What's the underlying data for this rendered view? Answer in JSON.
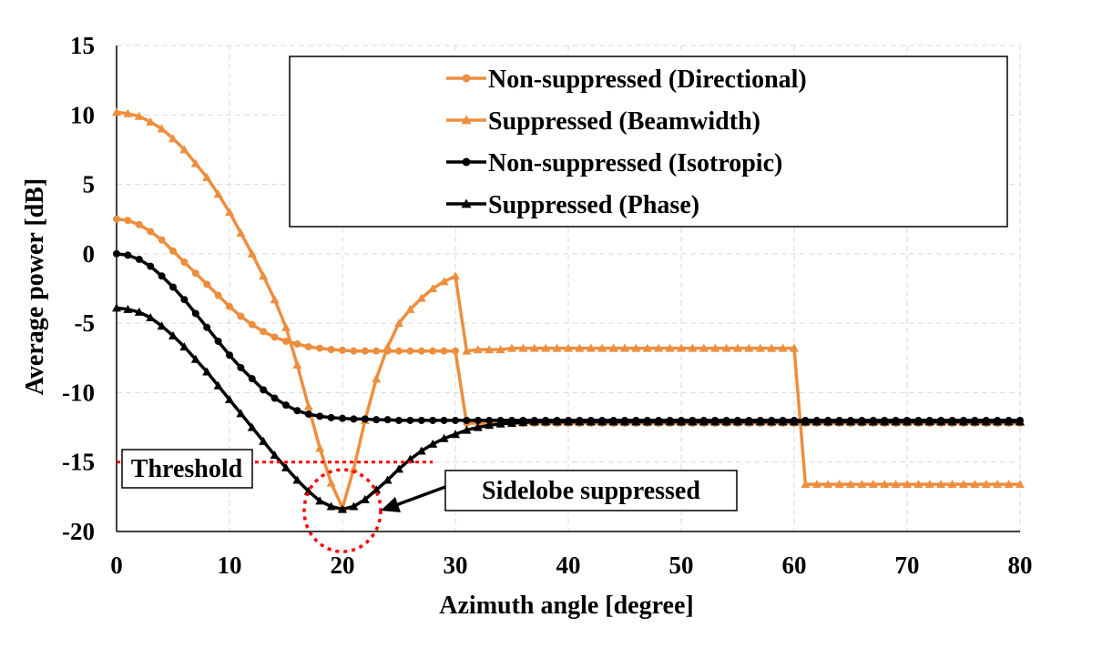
{
  "chart_data": {
    "type": "line",
    "title": "",
    "xlabel": "Azimuth angle [degree]",
    "ylabel": "Average power [dB]",
    "xlim": [
      0,
      80
    ],
    "ylim": [
      -20,
      15
    ],
    "xticks": [
      0,
      10,
      20,
      30,
      40,
      50,
      60,
      70,
      80
    ],
    "yticks": [
      15,
      10,
      5,
      0,
      -5,
      -10,
      -15,
      -20
    ],
    "grid": true,
    "legend_position": "top-right",
    "series": [
      {
        "name": "Non-suppressed (Directional)",
        "color": "#ED8E3F",
        "marker": "circle",
        "x": [
          0,
          1,
          2,
          3,
          4,
          5,
          6,
          7,
          8,
          9,
          10,
          11,
          12,
          13,
          14,
          15,
          16,
          17,
          18,
          19,
          20,
          21,
          22,
          23,
          24,
          25,
          26,
          27,
          28,
          29,
          30,
          31,
          32,
          33,
          34,
          35,
          36,
          37,
          38,
          39,
          40,
          41,
          42,
          43,
          44,
          45,
          46,
          47,
          48,
          49,
          50,
          51,
          52,
          53,
          54,
          55,
          56,
          57,
          58,
          59,
          60,
          61,
          62,
          63,
          64,
          65,
          66,
          67,
          68,
          69,
          70,
          71,
          72,
          73,
          74,
          75,
          76,
          77,
          78,
          79,
          80
        ],
        "y": [
          2.5,
          2.4,
          2.1,
          1.6,
          1.0,
          0.2,
          -0.6,
          -1.4,
          -2.2,
          -3.0,
          -3.8,
          -4.5,
          -5.1,
          -5.6,
          -6.0,
          -6.3,
          -6.5,
          -6.7,
          -6.8,
          -6.9,
          -6.95,
          -7.0,
          -7.0,
          -7.0,
          -7.0,
          -7.0,
          -7.0,
          -7.0,
          -7.0,
          -7.0,
          -7.0,
          -12.2,
          -12.2,
          -12.2,
          -12.2,
          -12.2,
          -12.2,
          -12.2,
          -12.2,
          -12.2,
          -12.2,
          -12.2,
          -12.2,
          -12.2,
          -12.2,
          -12.2,
          -12.2,
          -12.2,
          -12.2,
          -12.2,
          -12.2,
          -12.2,
          -12.2,
          -12.2,
          -12.2,
          -12.2,
          -12.2,
          -12.2,
          -12.2,
          -12.2,
          -12.2,
          -12.2,
          -12.2,
          -12.2,
          -12.2,
          -12.2,
          -12.2,
          -12.2,
          -12.2,
          -12.2,
          -12.2,
          -12.2,
          -12.2,
          -12.2,
          -12.2,
          -12.2,
          -12.2,
          -12.2,
          -12.2,
          -12.2,
          -12.2
        ]
      },
      {
        "name": "Suppressed (Beamwidth)",
        "color": "#ED8E3F",
        "marker": "triangle",
        "x": [
          0,
          1,
          2,
          3,
          4,
          5,
          6,
          7,
          8,
          9,
          10,
          11,
          12,
          13,
          14,
          15,
          16,
          17,
          18,
          19,
          20,
          21,
          22,
          23,
          24,
          25,
          26,
          27,
          28,
          29,
          30,
          31,
          32,
          33,
          34,
          35,
          36,
          37,
          38,
          39,
          40,
          41,
          42,
          43,
          44,
          45,
          46,
          47,
          48,
          49,
          50,
          51,
          52,
          53,
          54,
          55,
          56,
          57,
          58,
          59,
          60,
          61,
          62,
          63,
          64,
          65,
          66,
          67,
          68,
          69,
          70,
          71,
          72,
          73,
          74,
          75,
          76,
          77,
          78,
          79,
          80
        ],
        "y": [
          10.2,
          10.1,
          9.9,
          9.5,
          9.0,
          8.3,
          7.5,
          6.5,
          5.5,
          4.3,
          3.0,
          1.5,
          0.0,
          -1.6,
          -3.3,
          -5.3,
          -8.0,
          -11.0,
          -14.0,
          -16.5,
          -18.3,
          -15.5,
          -12.0,
          -9.0,
          -6.7,
          -5.0,
          -4.0,
          -3.2,
          -2.5,
          -2.0,
          -1.6,
          -7.0,
          -6.9,
          -6.9,
          -6.9,
          -6.8,
          -6.8,
          -6.8,
          -6.8,
          -6.8,
          -6.8,
          -6.8,
          -6.8,
          -6.8,
          -6.8,
          -6.8,
          -6.8,
          -6.8,
          -6.8,
          -6.8,
          -6.8,
          -6.8,
          -6.8,
          -6.8,
          -6.8,
          -6.8,
          -6.8,
          -6.8,
          -6.8,
          -6.8,
          -6.8,
          -16.6,
          -16.6,
          -16.6,
          -16.6,
          -16.6,
          -16.6,
          -16.6,
          -16.6,
          -16.6,
          -16.6,
          -16.6,
          -16.6,
          -16.6,
          -16.6,
          -16.6,
          -16.6,
          -16.6,
          -16.6,
          -16.6,
          -16.6
        ]
      },
      {
        "name": "Non-suppressed (Isotropic)",
        "color": "#000000",
        "marker": "circle",
        "x": [
          0,
          1,
          2,
          3,
          4,
          5,
          6,
          7,
          8,
          9,
          10,
          11,
          12,
          13,
          14,
          15,
          16,
          17,
          18,
          19,
          20,
          21,
          22,
          23,
          24,
          25,
          26,
          27,
          28,
          29,
          30,
          31,
          32,
          33,
          34,
          35,
          36,
          37,
          38,
          39,
          40,
          41,
          42,
          43,
          44,
          45,
          46,
          47,
          48,
          49,
          50,
          51,
          52,
          53,
          54,
          55,
          56,
          57,
          58,
          59,
          60,
          61,
          62,
          63,
          64,
          65,
          66,
          67,
          68,
          69,
          70,
          71,
          72,
          73,
          74,
          75,
          76,
          77,
          78,
          79,
          80
        ],
        "y": [
          0.0,
          -0.1,
          -0.4,
          -0.9,
          -1.6,
          -2.4,
          -3.3,
          -4.3,
          -5.3,
          -6.3,
          -7.3,
          -8.2,
          -9.0,
          -9.8,
          -10.4,
          -10.9,
          -11.3,
          -11.55,
          -11.7,
          -11.8,
          -11.85,
          -11.9,
          -11.9,
          -11.95,
          -11.95,
          -12.0,
          -12.0,
          -12.0,
          -12.0,
          -12.0,
          -12.0,
          -12.0,
          -12.0,
          -12.0,
          -12.0,
          -12.0,
          -12.0,
          -12.0,
          -12.0,
          -12.0,
          -12.0,
          -12.0,
          -12.0,
          -12.0,
          -12.0,
          -12.0,
          -12.0,
          -12.0,
          -12.0,
          -12.0,
          -12.0,
          -12.0,
          -12.0,
          -12.0,
          -12.0,
          -12.0,
          -12.0,
          -12.0,
          -12.0,
          -12.0,
          -12.0,
          -12.0,
          -12.0,
          -12.0,
          -12.0,
          -12.0,
          -12.0,
          -12.0,
          -12.0,
          -12.0,
          -12.0,
          -12.0,
          -12.0,
          -12.0,
          -12.0,
          -12.0,
          -12.0,
          -12.0,
          -12.0,
          -12.0,
          -12.0
        ]
      },
      {
        "name": "Suppressed (Phase)",
        "color": "#000000",
        "marker": "triangle",
        "x": [
          0,
          1,
          2,
          3,
          4,
          5,
          6,
          7,
          8,
          9,
          10,
          11,
          12,
          13,
          14,
          15,
          16,
          17,
          18,
          19,
          20,
          21,
          22,
          23,
          24,
          25,
          26,
          27,
          28,
          29,
          30,
          31,
          32,
          33,
          34,
          35,
          36,
          37,
          38,
          39,
          40,
          41,
          42,
          43,
          44,
          45,
          46,
          47,
          48,
          49,
          50,
          51,
          52,
          53,
          54,
          55,
          56,
          57,
          58,
          59,
          60,
          61,
          62,
          63,
          64,
          65,
          66,
          67,
          68,
          69,
          70,
          71,
          72,
          73,
          74,
          75,
          76,
          77,
          78,
          79,
          80
        ],
        "y": [
          -3.9,
          -4.0,
          -4.2,
          -4.6,
          -5.2,
          -5.9,
          -6.7,
          -7.6,
          -8.5,
          -9.5,
          -10.5,
          -11.5,
          -12.5,
          -13.5,
          -14.5,
          -15.4,
          -16.3,
          -17.1,
          -17.8,
          -18.2,
          -18.4,
          -18.2,
          -17.7,
          -17.0,
          -16.3,
          -15.5,
          -14.8,
          -14.2,
          -13.7,
          -13.3,
          -13.0,
          -12.7,
          -12.5,
          -12.35,
          -12.25,
          -12.2,
          -12.15,
          -12.1,
          -12.1,
          -12.1,
          -12.1,
          -12.1,
          -12.1,
          -12.1,
          -12.1,
          -12.1,
          -12.1,
          -12.1,
          -12.1,
          -12.1,
          -12.1,
          -12.1,
          -12.1,
          -12.1,
          -12.1,
          -12.1,
          -12.1,
          -12.1,
          -12.1,
          -12.1,
          -12.1,
          -12.1,
          -12.1,
          -12.1,
          -12.1,
          -12.1,
          -12.1,
          -12.1,
          -12.1,
          -12.1,
          -12.1,
          -12.1,
          -12.1,
          -12.1,
          -12.1,
          -12.1,
          -12.1,
          -12.1,
          -12.1,
          -12.1,
          -12.1
        ]
      }
    ],
    "annotations": {
      "threshold": {
        "label": "Threshold",
        "y": -15,
        "x_range": [
          0,
          28
        ],
        "color": "#FF0000",
        "style": "dotted"
      },
      "sidelobe": {
        "label": "Sidelobe suppressed",
        "circle_center": [
          20,
          -18.5
        ],
        "color": "#FF0000",
        "style": "dotted"
      }
    }
  }
}
